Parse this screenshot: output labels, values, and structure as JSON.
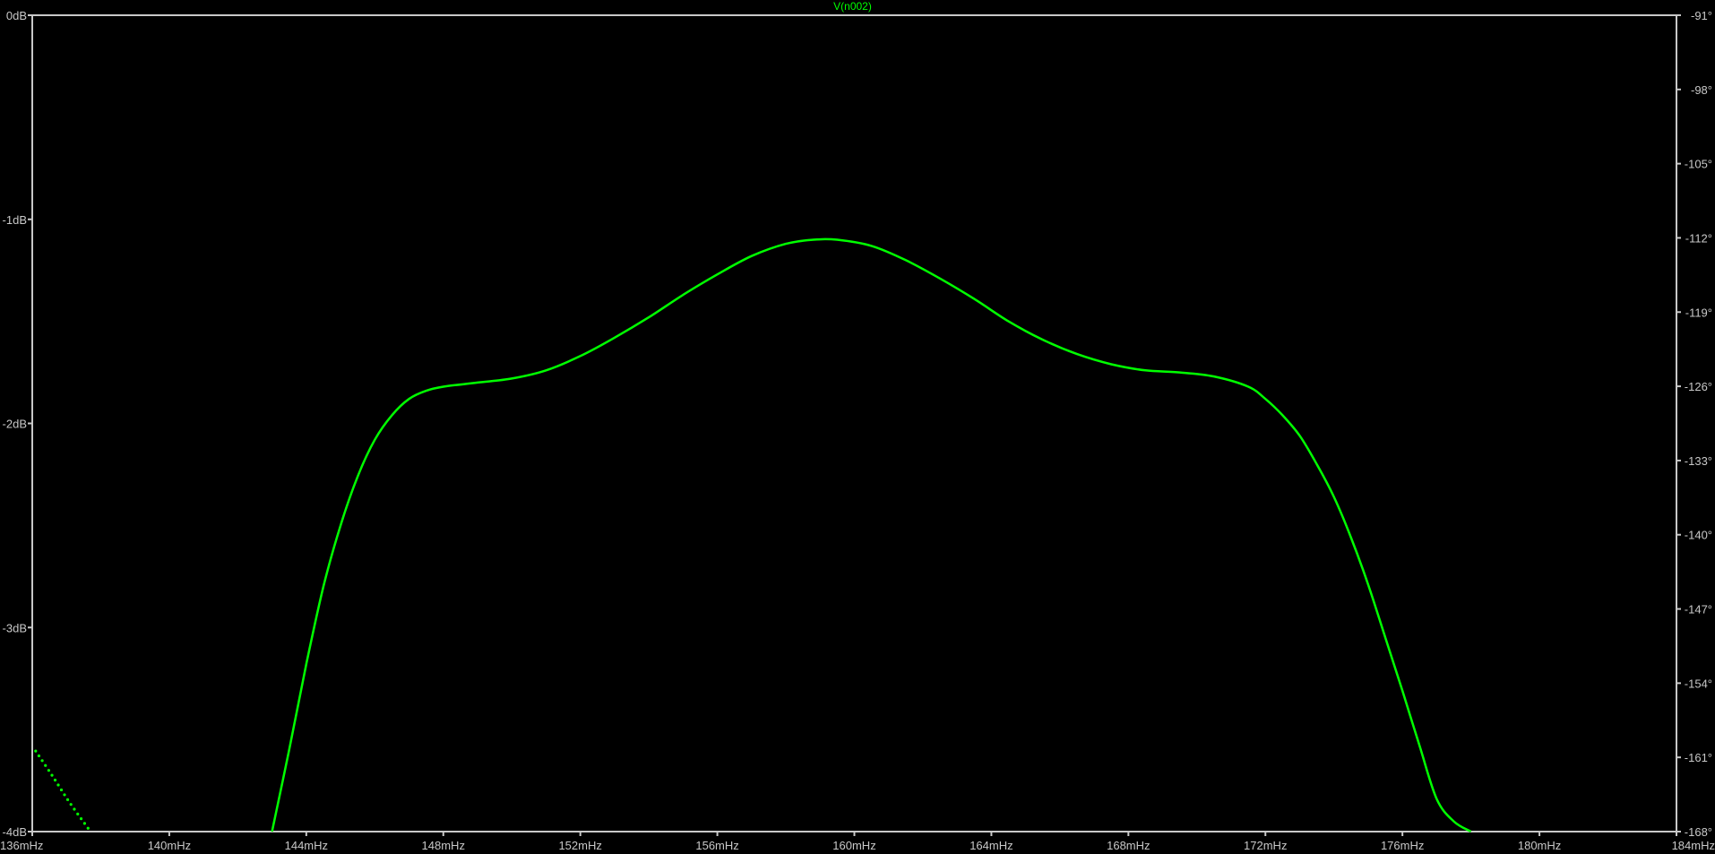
{
  "chart_data": {
    "type": "line",
    "title": "V(n002)",
    "x_ticks": [
      "136mHz",
      "140mHz",
      "144mHz",
      "148mHz",
      "152mHz",
      "156mHz",
      "160mHz",
      "164mHz",
      "168mHz",
      "172mHz",
      "176mHz",
      "180mHz",
      "184mHz"
    ],
    "y_left_ticks": [
      "0dB",
      "-1dB",
      "-2dB",
      "-3dB",
      "-4dB"
    ],
    "y_right_ticks": [
      "-91°",
      "-98°",
      "-105°",
      "-112°",
      "-119°",
      "-126°",
      "-133°",
      "-140°",
      "-147°",
      "-154°",
      "-161°",
      "-168°"
    ],
    "xlim": [
      136,
      184
    ],
    "ylim_left": [
      -4,
      0
    ],
    "ylim_right": [
      -168,
      -91
    ],
    "x_unit": "mHz",
    "grid": false,
    "colors": {
      "background": "#000000",
      "frame": "#c8c8c8",
      "trace": "#00ff00",
      "labels": "#c8c8c8"
    },
    "series": [
      {
        "axis": "left",
        "style": "solid",
        "x": [
          143.0,
          143.5,
          144.0,
          144.5,
          145.0,
          145.5,
          146.0,
          146.5,
          147.0,
          147.5,
          148.0,
          149.0,
          150.0,
          151.0,
          152.0,
          153.0,
          154.0,
          155.0,
          156.0,
          157.0,
          158.0,
          158.8,
          159.5,
          160.5,
          161.5,
          162.5,
          163.5,
          164.5,
          165.5,
          166.5,
          167.5,
          168.5,
          169.5,
          170.5,
          171.5,
          172.0,
          172.5,
          173.0,
          173.5,
          174.0,
          174.5,
          175.0,
          175.5,
          176.0,
          176.5,
          177.0,
          177.5,
          178.0
        ],
        "values": [
          -4.0,
          -3.6,
          -3.18,
          -2.8,
          -2.5,
          -2.26,
          -2.08,
          -1.96,
          -1.88,
          -1.84,
          -1.82,
          -1.8,
          -1.78,
          -1.74,
          -1.67,
          -1.58,
          -1.48,
          -1.37,
          -1.27,
          -1.18,
          -1.12,
          -1.1,
          -1.1,
          -1.13,
          -1.2,
          -1.29,
          -1.39,
          -1.5,
          -1.59,
          -1.66,
          -1.71,
          -1.74,
          -1.75,
          -1.77,
          -1.82,
          -1.88,
          -1.96,
          -2.06,
          -2.2,
          -2.36,
          -2.56,
          -2.79,
          -3.05,
          -3.31,
          -3.58,
          -3.84,
          -3.95,
          -4.0
        ]
      },
      {
        "axis": "right",
        "style": "dotted",
        "x": [
          136.1,
          136.6,
          137.1,
          137.7
        ],
        "values": [
          -160.4,
          -162.8,
          -165.3,
          -168.0
        ]
      }
    ]
  }
}
